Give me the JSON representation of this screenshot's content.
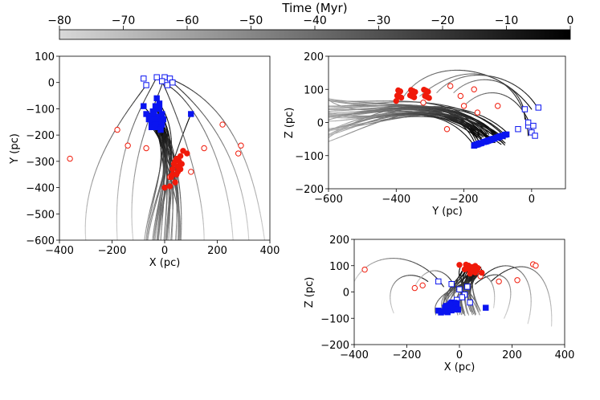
{
  "figure": {
    "colorbar": {
      "label": "Time (Myr)",
      "ticks": [
        "−80",
        "−70",
        "−60",
        "−50",
        "−40",
        "−30",
        "−20",
        "−10",
        "0"
      ],
      "range": [
        -80,
        0
      ]
    }
  },
  "chart_data": [
    {
      "type": "line",
      "id": "xy",
      "xlabel": "X (pc)",
      "ylabel": "Y (pc)",
      "xlim": [
        -400,
        400
      ],
      "ylim": [
        -600,
        100
      ],
      "xticks": [
        -400,
        -200,
        0,
        200,
        400
      ],
      "xtick_labels": [
        "−400",
        "−200",
        "0",
        "200",
        "400"
      ],
      "yticks": [
        -600,
        -500,
        -400,
        -300,
        -200,
        -100,
        0,
        100
      ],
      "ytick_labels": [
        "−600",
        "−500",
        "−400",
        "−300",
        "−200",
        "−100",
        "0",
        "100"
      ]
    },
    {
      "type": "line",
      "id": "yz",
      "xlabel": "Y (pc)",
      "ylabel": "Z (pc)",
      "xlim": [
        -600,
        100
      ],
      "ylim": [
        -200,
        200
      ],
      "xticks": [
        -600,
        -400,
        -200,
        0
      ],
      "xtick_labels": [
        "−600",
        "−400",
        "−200",
        "0"
      ],
      "yticks": [
        -200,
        -100,
        0,
        100,
        200
      ],
      "ytick_labels": [
        "−200",
        "−100",
        "0",
        "100",
        "200"
      ]
    },
    {
      "type": "line",
      "id": "xz",
      "xlabel": "X (pc)",
      "ylabel": "Z (pc)",
      "xlim": [
        -400,
        400
      ],
      "ylim": [
        -200,
        200
      ],
      "xticks": [
        -400,
        -200,
        0,
        200,
        400
      ],
      "xtick_labels": [
        "−400",
        "−200",
        "0",
        "200",
        "400"
      ],
      "yticks": [
        -200,
        -100,
        0,
        100,
        200
      ],
      "ytick_labels": [
        "−200",
        "−100",
        "0",
        "100",
        "200"
      ]
    }
  ],
  "markers": {
    "blue_filled": [
      [
        -30,
        -140
      ],
      [
        -40,
        -120
      ],
      [
        -20,
        -100
      ],
      [
        -50,
        -150
      ],
      [
        -10,
        -160
      ],
      [
        -35,
        -90
      ],
      [
        -25,
        -130
      ],
      [
        -45,
        -110
      ],
      [
        -15,
        -150
      ],
      [
        -55,
        -130
      ],
      [
        -30,
        -170
      ],
      [
        -20,
        -80
      ],
      [
        -40,
        -140
      ],
      [
        -10,
        -120
      ],
      [
        -60,
        -140
      ],
      [
        -35,
        -160
      ],
      [
        -25,
        -100
      ],
      [
        -5,
        -140
      ],
      [
        -70,
        -120
      ],
      [
        -30,
        -60
      ],
      [
        100,
        -120
      ],
      [
        -80,
        -90
      ],
      [
        -15,
        -180
      ],
      [
        -50,
        -170
      ]
    ],
    "blue_open": [
      [
        -80,
        15
      ],
      [
        -70,
        -10
      ],
      [
        -30,
        20
      ],
      [
        0,
        20
      ],
      [
        20,
        15
      ],
      [
        -10,
        5
      ],
      [
        10,
        -10
      ],
      [
        30,
        0
      ]
    ],
    "red_filled": [
      [
        40,
        -300
      ],
      [
        50,
        -320
      ],
      [
        30,
        -330
      ],
      [
        60,
        -280
      ],
      [
        45,
        -350
      ],
      [
        35,
        -310
      ],
      [
        55,
        -300
      ],
      [
        70,
        -260
      ],
      [
        25,
        -360
      ],
      [
        40,
        -380
      ],
      [
        50,
        -340
      ],
      [
        85,
        -270
      ],
      [
        20,
        -395
      ],
      [
        60,
        -330
      ],
      [
        45,
        -290
      ],
      [
        30,
        -350
      ],
      [
        0,
        -400
      ],
      [
        65,
        -310
      ]
    ],
    "red_open": [
      [
        -360,
        -290
      ],
      [
        -180,
        -180
      ],
      [
        -140,
        -240
      ],
      [
        -70,
        -250
      ],
      [
        20,
        -360
      ],
      [
        100,
        -340
      ],
      [
        150,
        -250
      ],
      [
        220,
        -160
      ],
      [
        290,
        -240
      ],
      [
        280,
        -270
      ]
    ],
    "colors": {
      "blue": "#0a14f0",
      "red": "#f01a0a"
    }
  }
}
